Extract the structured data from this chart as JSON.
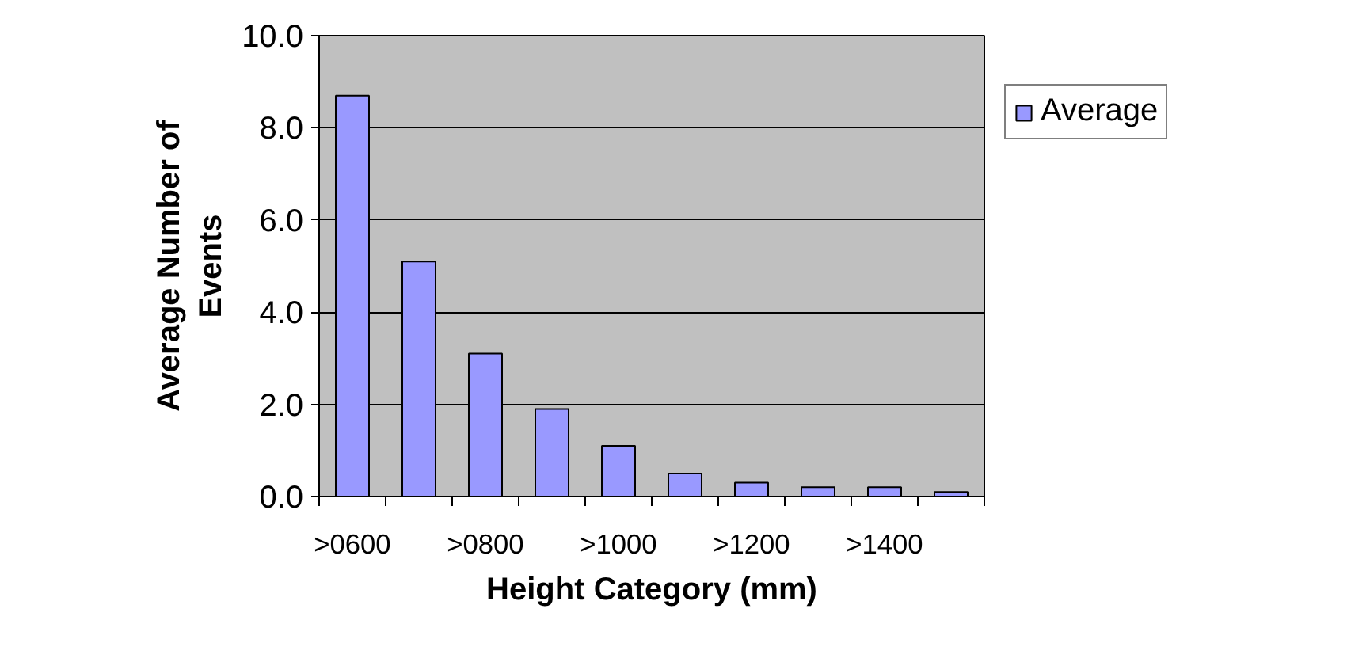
{
  "chart_data": {
    "type": "bar",
    "xlabel": "Height Category (mm)",
    "ylabel": "Average Number of Events",
    "categories": [
      ">0600",
      null,
      ">0800",
      null,
      ">1000",
      null,
      ">1200",
      null,
      ">1400",
      null
    ],
    "series": [
      {
        "name": "Average",
        "color": "#9999ff",
        "values": [
          8.7,
          5.1,
          3.1,
          1.9,
          1.1,
          0.5,
          0.3,
          0.2,
          0.2,
          0.1
        ]
      }
    ],
    "ylim": [
      0,
      10
    ],
    "yticks": [
      {
        "value": 0,
        "label": "0.0"
      },
      {
        "value": 2,
        "label": "2.0"
      },
      {
        "value": 4,
        "label": "4.0"
      },
      {
        "value": 6,
        "label": "6.0"
      },
      {
        "value": 8,
        "label": "8.0"
      },
      {
        "value": 10,
        "label": "10.0"
      }
    ],
    "grid": "y",
    "legend": "right"
  }
}
